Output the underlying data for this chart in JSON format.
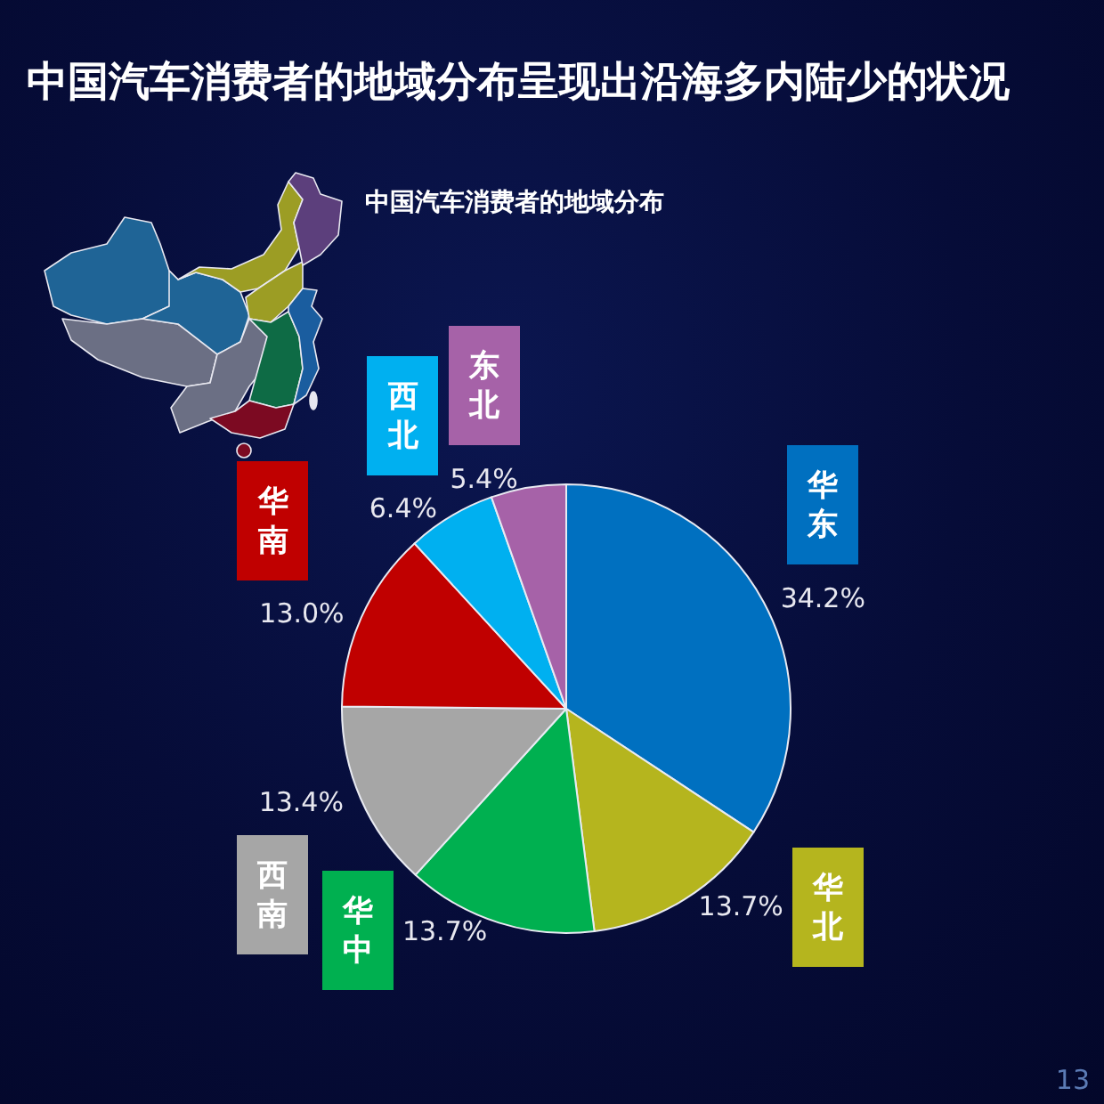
{
  "chart_data": {
    "type": "pie",
    "title": "中国汽车消费者的地域分布呈现出沿海多内陆少的状况",
    "subtitle": "中国汽车消费者的地域分布",
    "categories": [
      "华东",
      "华北",
      "华中",
      "西南",
      "华南",
      "西北",
      "东北"
    ],
    "values": [
      34.2,
      13.7,
      13.7,
      13.4,
      13.0,
      6.4,
      5.4
    ],
    "colors": [
      "#0070c0",
      "#b5b51e",
      "#00b050",
      "#a6a6a6",
      "#c00000",
      "#00b0f0",
      "#a662a8"
    ],
    "value_labels": [
      "34.2%",
      "13.7%",
      "13.7%",
      "13.4%",
      "13.0%",
      "6.4%",
      "5.4%"
    ],
    "annotations": [
      "13"
    ]
  }
}
